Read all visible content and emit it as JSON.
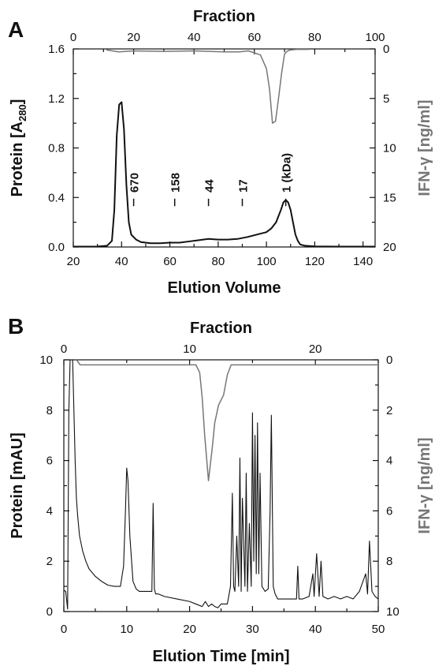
{
  "chart_data": [
    {
      "panel": "A",
      "type": "line",
      "xlabel": "Elution Volume",
      "ylabel": "Protein [A280]",
      "ylabel_main": "Protein [A",
      "ylabel_sub": "280",
      "ylabel_close": "]",
      "y2label": "IFN-γ [ng/ml]",
      "x2label": "Fraction",
      "xlim": [
        20,
        145
      ],
      "ylim": [
        0,
        1.6
      ],
      "y2lim": [
        0,
        20
      ],
      "x2lim": [
        0,
        100
      ],
      "xticks": [
        "20",
        "40",
        "60",
        "80",
        "100",
        "120",
        "140"
      ],
      "yticks": [
        "0.0",
        "0.4",
        "0.8",
        "1.2",
        "1.6"
      ],
      "y2ticks": [
        "0",
        "5",
        "10",
        "15",
        "20"
      ],
      "x2ticks": [
        "0",
        "20",
        "40",
        "60",
        "80",
        "100"
      ],
      "markers": [
        {
          "label": "670",
          "x": 45
        },
        {
          "label": "158",
          "x": 62
        },
        {
          "label": "44",
          "x": 76
        },
        {
          "label": "17",
          "x": 90
        },
        {
          "label": "1 (kDa)",
          "x": 108
        }
      ],
      "series": [
        {
          "color": "#111111",
          "axis": "left",
          "x": [
            20,
            30,
            34,
            36,
            37,
            38,
            39,
            40,
            41,
            42,
            43,
            44,
            46,
            48,
            52,
            56,
            60,
            64,
            68,
            72,
            76,
            80,
            84,
            88,
            92,
            96,
            100,
            102,
            104,
            105,
            106,
            107,
            108,
            109,
            110,
            111,
            112,
            113,
            114,
            116,
            120,
            130,
            145
          ],
          "y": [
            0.003,
            0.004,
            0.01,
            0.05,
            0.3,
            0.9,
            1.15,
            1.17,
            0.95,
            0.5,
            0.2,
            0.1,
            0.06,
            0.04,
            0.03,
            0.03,
            0.035,
            0.035,
            0.045,
            0.055,
            0.065,
            0.06,
            0.06,
            0.065,
            0.08,
            0.1,
            0.12,
            0.15,
            0.2,
            0.25,
            0.3,
            0.36,
            0.38,
            0.36,
            0.3,
            0.2,
            0.1,
            0.05,
            0.02,
            0.01,
            0.005,
            0.003,
            0.003
          ]
        },
        {
          "color": "#777777",
          "axis": "fraction-right",
          "x": [
            11,
            15,
            20,
            30,
            40,
            50,
            55,
            58,
            60,
            62,
            64,
            65,
            66,
            67,
            68,
            69,
            70,
            71,
            72,
            74,
            76,
            78
          ],
          "y": [
            0.1,
            0.3,
            0.2,
            0.25,
            0.2,
            0.3,
            0.3,
            0.2,
            0.4,
            0.6,
            2.0,
            4.0,
            7.5,
            7.3,
            5.0,
            2.5,
            0.5,
            0.2,
            0.1,
            0.05,
            0.05,
            0.05
          ]
        }
      ]
    },
    {
      "panel": "B",
      "type": "line",
      "xlabel": "Elution Time [min]",
      "ylabel": "Protein [mAU]",
      "y2label": "IFN-γ [ng/ml]",
      "x2label": "Fraction",
      "xlim": [
        0,
        50
      ],
      "ylim": [
        0,
        10
      ],
      "y2lim": [
        0,
        10
      ],
      "x2lim": [
        0,
        25
      ],
      "xticks": [
        "0",
        "10",
        "20",
        "30",
        "40",
        "50"
      ],
      "yticks": [
        "0",
        "2",
        "4",
        "6",
        "8",
        "10"
      ],
      "y2ticks": [
        "0",
        "2",
        "4",
        "6",
        "8",
        "10"
      ],
      "x2ticks": [
        "0",
        "10",
        "20"
      ],
      "series": [
        {
          "color": "#111111",
          "axis": "left",
          "x": [
            0,
            0.3,
            0.6,
            0.8,
            1.0,
            1.2,
            1.4,
            1.6,
            1.8,
            2.0,
            2.2,
            2.5,
            3.0,
            3.5,
            4,
            5,
            6,
            7,
            8,
            9,
            9.5,
            9.8,
            10,
            10.2,
            10.5,
            11,
            11.5,
            12,
            13,
            14,
            14.2,
            14.4,
            14.6,
            15,
            16,
            18,
            20,
            21,
            22,
            22.5,
            23,
            23.5,
            24,
            24.5,
            25,
            26,
            26.5,
            26.8,
            27.0,
            27.2,
            27.5,
            27.8,
            28.0,
            28.2,
            28.4,
            28.8,
            29.0,
            29.2,
            29.5,
            29.8,
            30.0,
            30.2,
            30.4,
            30.6,
            30.8,
            31.0,
            31.2,
            31.5,
            32.0,
            32.5,
            32.8,
            33.0,
            33.3,
            33.6,
            34,
            35,
            36,
            37,
            37.2,
            37.4,
            38,
            39,
            39.6,
            39.8,
            40.2,
            40.6,
            40.9,
            41.2,
            42,
            43,
            44,
            45,
            46,
            47,
            48,
            48.3,
            48.6,
            49,
            49.5,
            50
          ],
          "y": [
            0.85,
            0.8,
            0.1,
            8,
            10,
            10,
            10,
            8,
            6,
            4.5,
            3.8,
            3.0,
            2.4,
            2.0,
            1.7,
            1.4,
            1.2,
            1.05,
            1.0,
            1.0,
            1.8,
            4.0,
            5.7,
            5.2,
            3.0,
            1.2,
            0.9,
            0.8,
            0.8,
            0.8,
            4.3,
            0.9,
            0.7,
            0.7,
            0.6,
            0.5,
            0.4,
            0.3,
            0.2,
            0.4,
            0.2,
            0.3,
            0.2,
            0.15,
            0.3,
            0.3,
            1.0,
            4.7,
            1.0,
            0.8,
            3.0,
            1.0,
            6.1,
            0.8,
            4.5,
            1.0,
            5.5,
            0.8,
            3.5,
            1.0,
            7.9,
            2.0,
            7.0,
            1.5,
            7.5,
            1.5,
            5.5,
            1.0,
            0.8,
            0.9,
            4.0,
            7.8,
            1.0,
            0.7,
            0.5,
            0.5,
            0.5,
            0.5,
            1.8,
            0.5,
            0.5,
            0.6,
            1.5,
            0.6,
            2.3,
            0.6,
            2.0,
            0.6,
            0.5,
            0.6,
            0.5,
            0.6,
            0.5,
            0.8,
            1.5,
            0.7,
            2.8,
            0.8,
            0.6,
            0.5
          ]
        },
        {
          "color": "#777777",
          "axis": "fraction-right",
          "x": [
            1,
            1.3,
            2,
            5,
            9,
            10.5,
            10.8,
            11.0,
            11.2,
            11.5,
            11.8,
            12.0,
            12.3,
            12.7,
            13.0,
            13.3,
            13.6,
            14,
            17,
            21,
            25
          ],
          "y": [
            0,
            0.2,
            0.2,
            0.2,
            0.2,
            0.2,
            0.5,
            1.5,
            3.0,
            4.8,
            3.5,
            2.5,
            1.8,
            1.4,
            0.6,
            0.2,
            0.2,
            0.2,
            0.2,
            0.2,
            0.2
          ]
        }
      ]
    }
  ]
}
